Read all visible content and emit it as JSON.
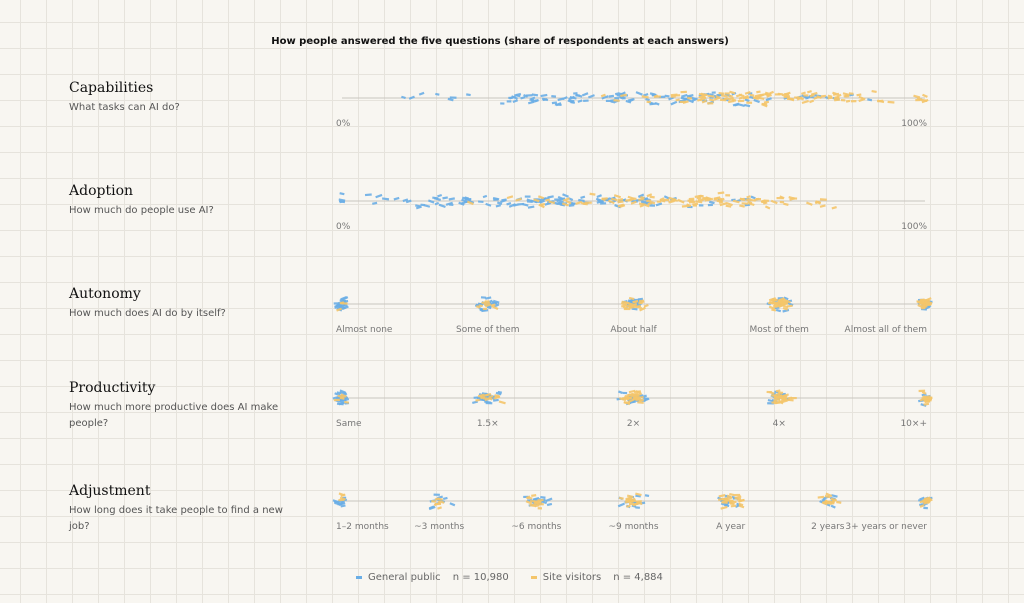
{
  "chart_data": {
    "title": "How people answered the five questions (share of respondents at each answers)",
    "type": "scatter",
    "series": [
      {
        "name": "General public",
        "n_label": "n = 10,980",
        "color": "#6aaee6"
      },
      {
        "name": "Site visitors",
        "n_label": "n = 4,884",
        "color": "#f4c56a"
      }
    ],
    "panels": [
      {
        "name": "Capabilities",
        "question": "What tasks can AI do?",
        "scale": "continuous",
        "tick_labels": [
          "0%",
          "100%"
        ],
        "xlim": [
          0,
          100
        ],
        "general_public_center": 55,
        "site_visitors_center": 75
      },
      {
        "name": "Adoption",
        "question": "How much do people use AI?",
        "scale": "continuous",
        "tick_labels": [
          "0%",
          "100%"
        ],
        "xlim": [
          0,
          100
        ],
        "general_public_center": 35,
        "site_visitors_center": 60
      },
      {
        "name": "Autonomy",
        "question": "How much does AI do by itself?",
        "scale": "categorical",
        "tick_labels": [
          "Almost none",
          "Some of them",
          "About half",
          "Most of them",
          "Almost all of them"
        ],
        "general_public_share": [
          0.2,
          0.22,
          0.28,
          0.18,
          0.12
        ],
        "site_visitors_share": [
          0.03,
          0.1,
          0.25,
          0.38,
          0.24
        ]
      },
      {
        "name": "Productivity",
        "question": "How much more productive does AI make people?",
        "scale": "categorical",
        "tick_labels": [
          "Same",
          "1.5×",
          "2×",
          "4×",
          "10×+"
        ],
        "general_public_share": [
          0.3,
          0.28,
          0.22,
          0.12,
          0.08
        ],
        "site_visitors_share": [
          0.05,
          0.15,
          0.3,
          0.3,
          0.2
        ]
      },
      {
        "name": "Adjustment",
        "question": "How long does it take people to find a new job?",
        "scale": "categorical",
        "tick_labels": [
          "1–2 months",
          "~3 months",
          "~6 months",
          "~9 months",
          "A year",
          "2 years",
          "3+ years or never"
        ],
        "general_public_share": [
          0.12,
          0.12,
          0.2,
          0.18,
          0.16,
          0.12,
          0.1
        ],
        "site_visitors_share": [
          0.04,
          0.08,
          0.15,
          0.2,
          0.25,
          0.15,
          0.13
        ]
      }
    ]
  }
}
